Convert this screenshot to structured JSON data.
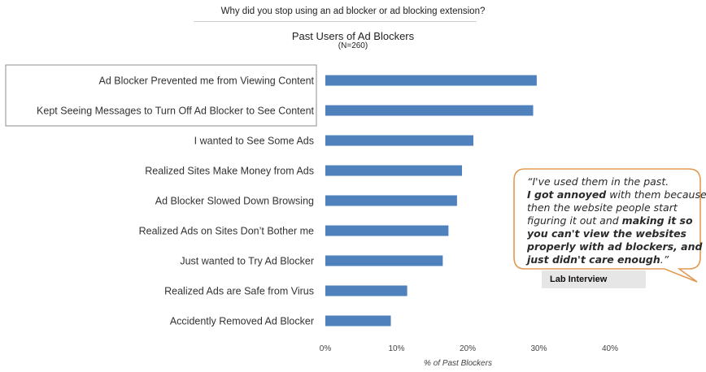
{
  "question": "Why did you stop using an ad blocker or ad blocking extension?",
  "chart_data": {
    "type": "bar",
    "orientation": "horizontal",
    "title": "Past Users of Ad Blockers",
    "subtitle": "(N=260)",
    "xlabel": "% of Past Blockers",
    "ylabel": "",
    "xlim": [
      0,
      40
    ],
    "x_ticks": [
      "0%",
      "10%",
      "20%",
      "30%",
      "40%"
    ],
    "grid": false,
    "bar_color": "#4f81bd",
    "highlight_box_color": "#8c8c8c",
    "highlighted_categories": [
      0,
      1
    ],
    "categories": [
      "Ad Blocker Prevented me from Viewing Content",
      "Kept Seeing Messages to Turn Off Ad Blocker to See Content",
      "I wanted to See Some Ads",
      "Realized Sites Make Money from Ads",
      "Ad Blocker Slowed Down Browsing",
      "Realized Ads on Sites Don’t Bother me",
      "Just wanted to Try Ad Blocker",
      "Realized Ads are Safe from Virus",
      "Accidently Removed Ad Blocker"
    ],
    "values": [
      29.7,
      29.2,
      20.8,
      19.2,
      18.5,
      17.3,
      16.5,
      11.5,
      9.2
    ]
  },
  "callout": {
    "border_color": "#e09a53",
    "quote_parts": [
      {
        "text": "“I've used them in the past.",
        "bold": false
      },
      {
        "text": "I got annoyed",
        "bold": true
      },
      {
        "text": " with them because then the website people start figuring it out and ",
        "bold": false
      },
      {
        "text": "making it so you can't view the websites properly with ad blockers, and just didn't care enough",
        "bold": true
      },
      {
        "text": ".”",
        "bold": false
      }
    ],
    "lines": [
      [
        {
          "t": "“I've used them in the past.",
          "b": false
        }
      ],
      [
        {
          "t": "I got annoyed",
          "b": true
        },
        {
          "t": " with them because",
          "b": false
        }
      ],
      [
        {
          "t": "then the website people start",
          "b": false
        }
      ],
      [
        {
          "t": "figuring it out and ",
          "b": false
        },
        {
          "t": "making it so",
          "b": true
        }
      ],
      [
        {
          "t": "you can't view the websites",
          "b": true
        }
      ],
      [
        {
          "t": "properly with ad blockers, and",
          "b": true
        }
      ],
      [
        {
          "t": "just didn't care enough",
          "b": true
        },
        {
          "t": ".”",
          "b": false
        }
      ]
    ],
    "source": "Lab Interview"
  }
}
